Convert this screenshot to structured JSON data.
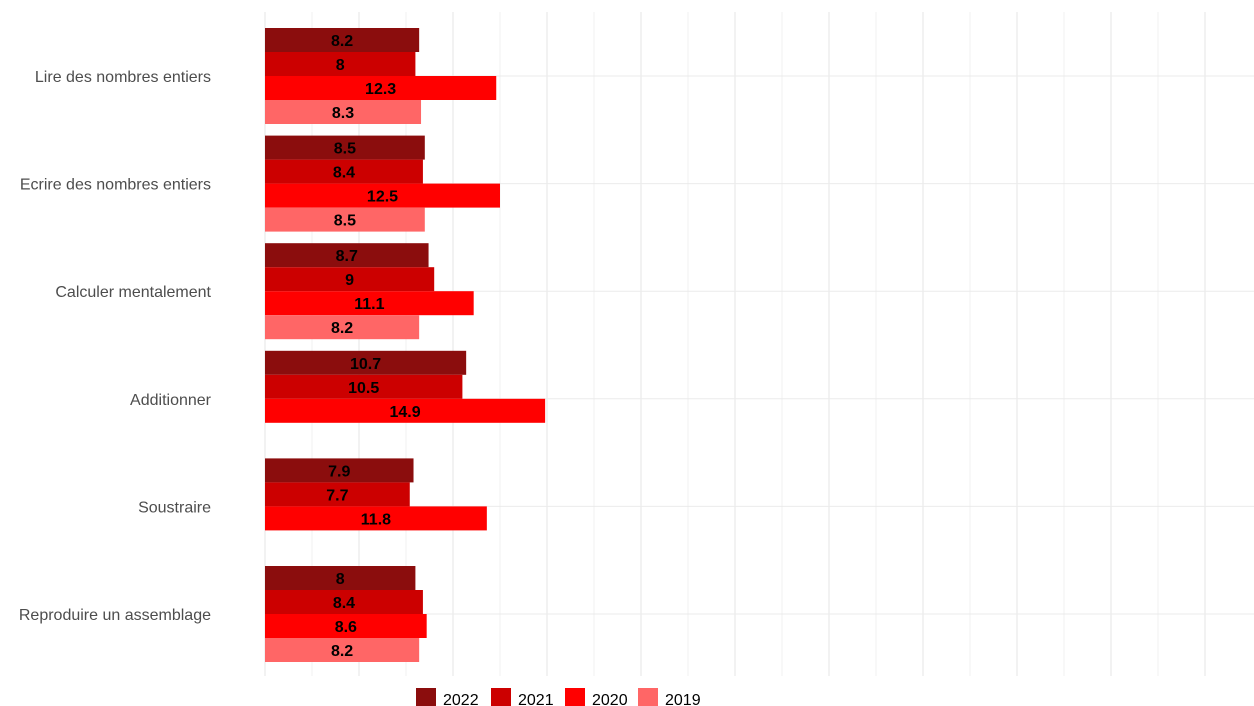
{
  "chart_data": {
    "type": "bar",
    "orientation": "horizontal",
    "categories": [
      "Lire des nombres entiers",
      "Ecrire des nombres entiers",
      "Calculer mentalement",
      "Additionner",
      "Soustraire",
      "Reproduire un assemblage"
    ],
    "series": [
      {
        "name": "2022",
        "color": "#8B0D0D",
        "values": [
          8.2,
          8.5,
          8.7,
          10.7,
          7.9,
          8
        ]
      },
      {
        "name": "2021",
        "color": "#CC0000",
        "values": [
          8,
          8.4,
          9,
          10.5,
          7.7,
          8.4
        ]
      },
      {
        "name": "2020",
        "color": "#FF0000",
        "values": [
          12.3,
          12.5,
          11.1,
          14.9,
          11.8,
          8.6
        ]
      },
      {
        "name": "2019",
        "color": "#FF6666",
        "values": [
          8.3,
          8.5,
          8.2,
          null,
          null,
          8.2
        ]
      }
    ],
    "title": "",
    "xlabel": "",
    "ylabel": "",
    "xlim": [
      0,
      52
    ],
    "grid": true,
    "legend_position": "bottom"
  }
}
